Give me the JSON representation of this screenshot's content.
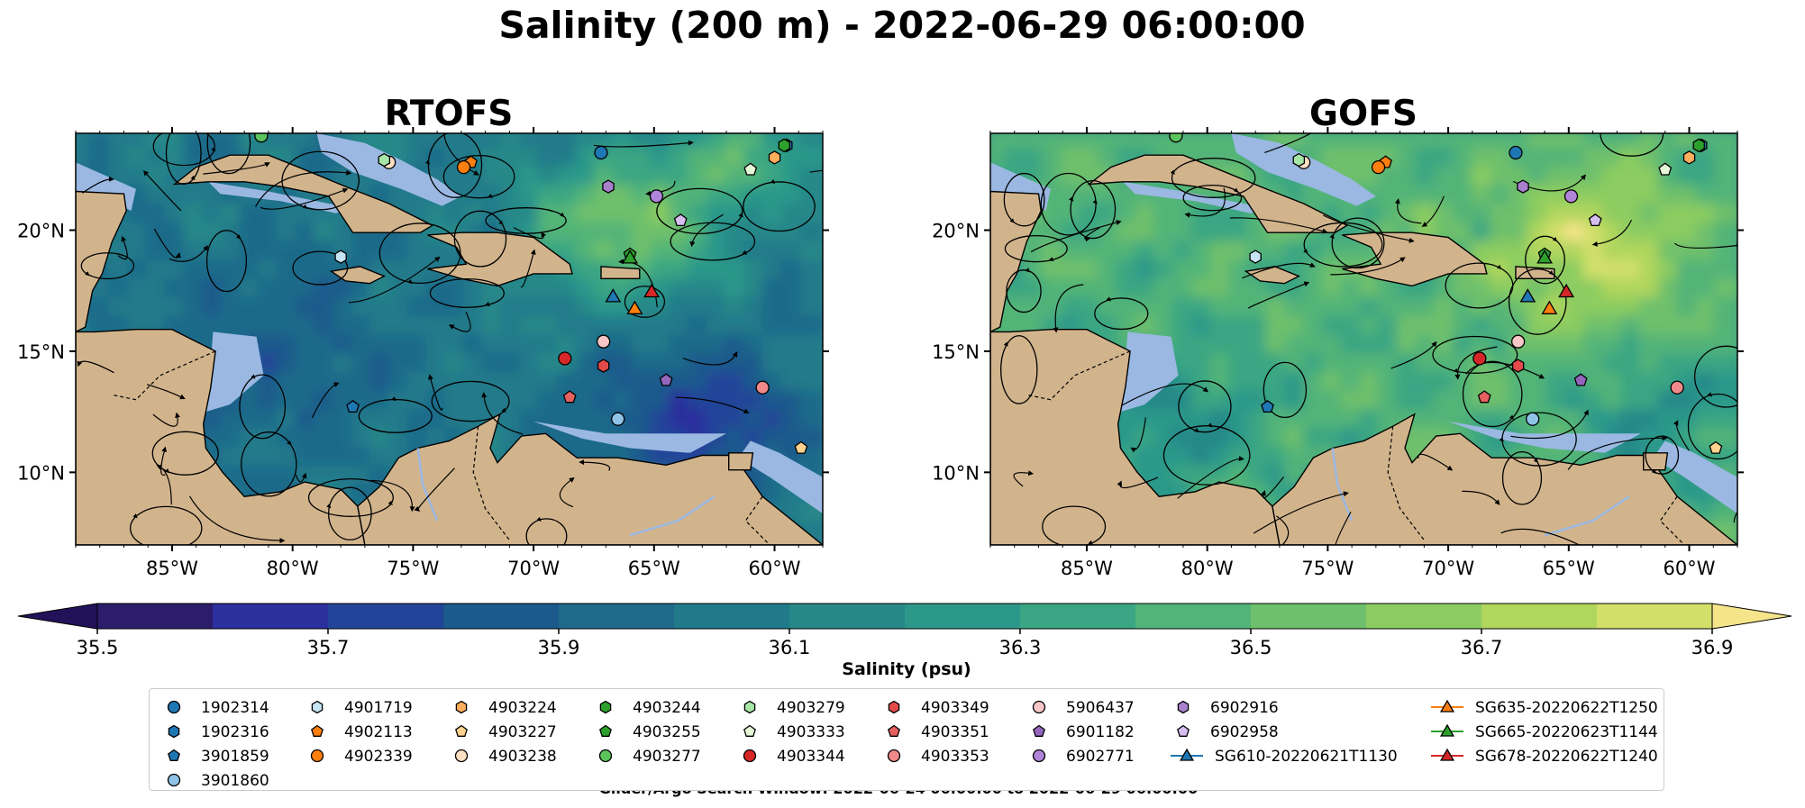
{
  "chart_data": {
    "type": "heatmap",
    "title": "Salinity (200 m) - 2022-06-29 06:00:00",
    "variable": "Salinity",
    "depth": "200 m",
    "timestamp": "2022-06-29 06:00:00",
    "panels": [
      {
        "name": "RTOFS",
        "title": "RTOFS"
      },
      {
        "name": "GOFS",
        "title": "GOFS"
      }
    ],
    "xlim": [
      -89,
      -58
    ],
    "ylim": [
      7,
      24
    ],
    "x_ticks": [
      -85,
      -80,
      -75,
      -70,
      -65,
      -60
    ],
    "x_tick_labels": [
      "85°W",
      "80°W",
      "75°W",
      "70°W",
      "65°W",
      "60°W"
    ],
    "y_ticks": [
      10,
      15,
      20
    ],
    "y_tick_labels": [
      "10°N",
      "15°N",
      "20°N"
    ],
    "colorbar": {
      "label": "Salinity (psu)",
      "min": 35.5,
      "max": 36.9,
      "step": 0.1,
      "tick_values": [
        35.5,
        35.7,
        35.9,
        36.1,
        36.3,
        36.5,
        36.7,
        36.9
      ],
      "tick_labels": [
        "35.5",
        "35.7",
        "35.9",
        "36.1",
        "36.3",
        "36.5",
        "36.7",
        "36.9"
      ],
      "colors": [
        "#2b1d6b",
        "#2c2f9e",
        "#22449a",
        "#1c5a8c",
        "#1e6a8a",
        "#217a8a",
        "#268889",
        "#2c988a",
        "#3aa683",
        "#52b478",
        "#6ec06c",
        "#8ccc60",
        "#b0d65d",
        "#d2e06a"
      ],
      "extend_low_color": "#22125a",
      "extend_high_color": "#f6e48a"
    },
    "series": [
      {
        "name": "1902314",
        "type": "argo",
        "marker": "circle",
        "color": "#1f77b4",
        "lon": -67.2,
        "lat": 23.2
      },
      {
        "name": "1902316",
        "type": "argo",
        "marker": "hexagon",
        "color": "#1f77b4",
        "lon": -59.5,
        "lat": 23.5
      },
      {
        "name": "3901859",
        "type": "argo",
        "marker": "pentagon",
        "color": "#1f77b4",
        "lon": -77.5,
        "lat": 12.7
      },
      {
        "name": "3901860",
        "type": "argo",
        "marker": "circle",
        "color": "#8fc3e8",
        "lon": -66.5,
        "lat": 12.2
      },
      {
        "name": "4901719",
        "type": "argo",
        "marker": "hexagon",
        "color": "#c6e4f4",
        "lon": -78.0,
        "lat": 18.9
      },
      {
        "name": "4902113",
        "type": "argo",
        "marker": "pentagon",
        "color": "#ff7f0e",
        "lon": -72.6,
        "lat": 22.8
      },
      {
        "name": "4902339",
        "type": "argo",
        "marker": "circle",
        "color": "#ff7f0e",
        "lon": -72.9,
        "lat": 22.6
      },
      {
        "name": "4903224",
        "type": "argo",
        "marker": "hexagon",
        "color": "#ffae5c",
        "lon": -60.0,
        "lat": 23.0
      },
      {
        "name": "4903227",
        "type": "argo",
        "marker": "pentagon",
        "color": "#ffd28f",
        "lon": -58.9,
        "lat": 11.0
      },
      {
        "name": "4903238",
        "type": "argo",
        "marker": "circle",
        "color": "#ffe0c2",
        "lon": -76.0,
        "lat": 22.8
      },
      {
        "name": "4903244",
        "type": "argo",
        "marker": "hexagon",
        "color": "#2ca02c",
        "lon": -59.6,
        "lat": 23.5
      },
      {
        "name": "4903255",
        "type": "argo",
        "marker": "pentagon",
        "color": "#2ca02c",
        "lon": -66.0,
        "lat": 19.0
      },
      {
        "name": "4903277",
        "type": "argo",
        "marker": "circle",
        "color": "#5cc45c",
        "lon": -81.3,
        "lat": 23.9
      },
      {
        "name": "4903279",
        "type": "argo",
        "marker": "hexagon",
        "color": "#a6e6a6",
        "lon": -76.2,
        "lat": 22.9
      },
      {
        "name": "4903333",
        "type": "argo",
        "marker": "pentagon",
        "color": "#e6f7d8",
        "lon": -61.0,
        "lat": 22.5
      },
      {
        "name": "4903344",
        "type": "argo",
        "marker": "circle",
        "color": "#d62728",
        "lon": -68.7,
        "lat": 14.7
      },
      {
        "name": "4903349",
        "type": "argo",
        "marker": "hexagon",
        "color": "#e34a4a",
        "lon": -67.1,
        "lat": 14.4
      },
      {
        "name": "4903351",
        "type": "argo",
        "marker": "pentagon",
        "color": "#e66060",
        "lon": -68.5,
        "lat": 13.1
      },
      {
        "name": "4903353",
        "type": "argo",
        "marker": "circle",
        "color": "#f08a8a",
        "lon": -60.5,
        "lat": 13.5
      },
      {
        "name": "5906437",
        "type": "argo",
        "marker": "circle",
        "color": "#f7c6c6",
        "lon": -67.1,
        "lat": 15.4
      },
      {
        "name": "6901182",
        "type": "argo",
        "marker": "pentagon",
        "color": "#9467bd",
        "lon": -64.5,
        "lat": 13.8
      },
      {
        "name": "6902771",
        "type": "argo",
        "marker": "circle",
        "color": "#b084d8",
        "lon": -64.9,
        "lat": 21.4
      },
      {
        "name": "6902916",
        "type": "argo",
        "marker": "hexagon",
        "color": "#a880cc",
        "lon": -66.9,
        "lat": 21.8
      },
      {
        "name": "6902958",
        "type": "argo",
        "marker": "pentagon",
        "color": "#d6bff0",
        "lon": -63.9,
        "lat": 20.4
      },
      {
        "name": "SG610-20220621T1130",
        "type": "glider",
        "marker": "triangle",
        "color": "#1f77b4",
        "lon": -66.7,
        "lat": 17.3
      },
      {
        "name": "SG635-20220622T1250",
        "type": "glider",
        "marker": "triangle",
        "color": "#ff7f0e",
        "lon": -65.8,
        "lat": 16.8
      },
      {
        "name": "SG665-20220623T1144",
        "type": "glider",
        "marker": "triangle",
        "color": "#2ca02c",
        "lon": -66.0,
        "lat": 18.9
      },
      {
        "name": "SG678-20220622T1240",
        "type": "glider",
        "marker": "triangle",
        "color": "#d62728",
        "lon": -65.1,
        "lat": 17.5
      }
    ],
    "footer": "Glider/Argo Search Window: 2022-06-24 06:00:00 to 2022-06-29 06:00:00"
  },
  "colors": {
    "land": "#d2b48c",
    "shelf": "#9ab8e2",
    "streamline": "#000000"
  }
}
